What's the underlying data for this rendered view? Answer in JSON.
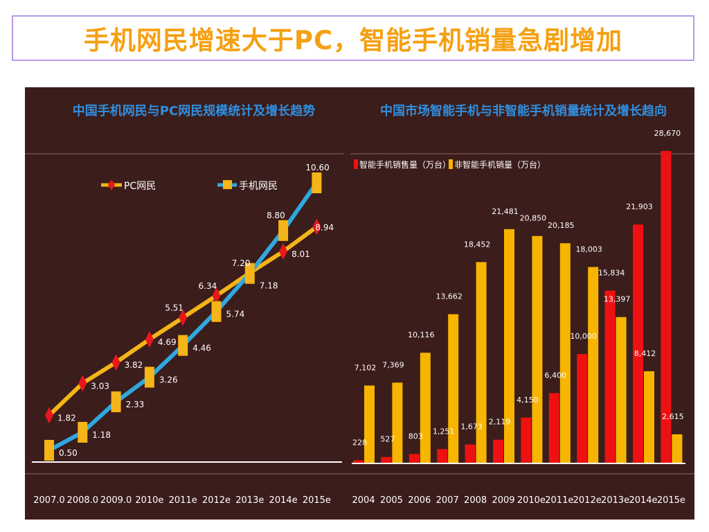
{
  "slide": {
    "title": "手机网民增速大于PC，智能手机销量急剧增加"
  },
  "chart_data": [
    {
      "type": "line",
      "title": "中国手机网民与PC网民规模统计及增长趋势",
      "categories": [
        "2007.0",
        "2008.0",
        "2009.0",
        "2010e",
        "2011e",
        "2012e",
        "2013e",
        "2014e",
        "2015e"
      ],
      "series": [
        {
          "name": "PC网民",
          "values": [
            1.82,
            3.03,
            3.82,
            4.69,
            5.51,
            6.34,
            7.2,
            8.01,
            8.94
          ],
          "labels": [
            "1.82",
            "3.03",
            "3.82",
            "4.69",
            "5.51",
            "6.34",
            "7.20",
            "8.01",
            "8.94"
          ],
          "color": "#f5b417",
          "marker_color": "#e8161d"
        },
        {
          "name": "手机网民",
          "values": [
            0.5,
            1.18,
            2.33,
            3.26,
            4.46,
            5.74,
            7.18,
            8.8,
            10.6
          ],
          "labels": [
            "0.50",
            "1.18",
            "2.33",
            "3.26",
            "4.46",
            "5.74",
            "7.18",
            "8.80",
            "10.60"
          ],
          "color": "#2fa8e0",
          "marker_color": "#f5b417"
        }
      ],
      "ylim": [
        0.5,
        10.6
      ],
      "legend_position": "top",
      "grid": false
    },
    {
      "type": "bar",
      "title": "中国市场智能手机与非智能手机销量统计及增长趋向",
      "categories": [
        "2004",
        "2005",
        "2006",
        "2007",
        "2008",
        "2009",
        "2010e",
        "2011e",
        "2012e",
        "2013e",
        "2014e",
        "2015e"
      ],
      "series": [
        {
          "name": "智能手机销售量（万台）",
          "values": [
            228,
            527,
            803,
            1251,
            1673,
            2119,
            4150,
            6400,
            10000,
            15834,
            21903,
            28670
          ],
          "labels": [
            "228",
            "527",
            "803",
            "1,251",
            "1,673",
            "2,119",
            "4,150",
            "6,400",
            "10,000",
            "15,834",
            "21,903",
            "28,670"
          ],
          "color": "#ee1111"
        },
        {
          "name": "非智能手机销量（万台）",
          "values": [
            7102,
            7369,
            10116,
            13662,
            18452,
            21481,
            20850,
            20185,
            18003,
            13397,
            8412,
            2615
          ],
          "labels": [
            "7,102",
            "7,369",
            "10,116",
            "13,662",
            "18,452",
            "21,481",
            "20,850",
            "20,185",
            "18,003",
            "13,397",
            "8,412",
            "2,615"
          ],
          "color": "#f7b500"
        }
      ],
      "ylim": [
        0,
        28670
      ],
      "legend_position": "top-left",
      "grid": false
    }
  ]
}
